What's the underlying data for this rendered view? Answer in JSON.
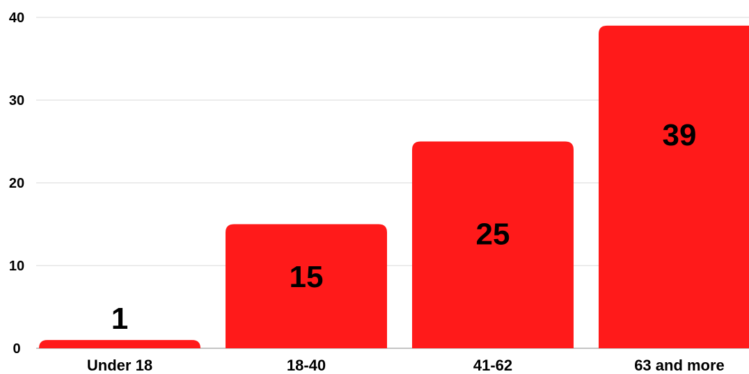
{
  "chart_data": {
    "type": "bar",
    "categories": [
      "Under 18",
      "18-40",
      "41-62",
      "63 and more"
    ],
    "values": [
      1,
      15,
      25,
      39
    ],
    "data_labels": [
      "1",
      "15",
      "25",
      "39"
    ],
    "yticks": [
      "0",
      "10",
      "20",
      "30",
      "40"
    ],
    "ylim": [
      0,
      40
    ],
    "grid": true,
    "bar_color": "#ff1a1a",
    "title": "",
    "xlabel": "",
    "ylabel": ""
  }
}
